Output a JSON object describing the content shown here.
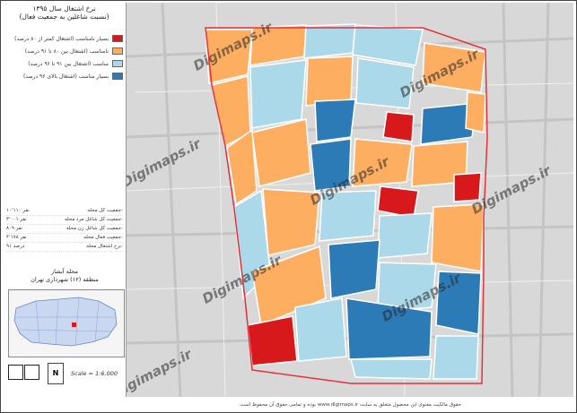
{
  "title_line1": "نرخ اشتغال سال ۱۳۹۵",
  "title_line2": "(نسبت شاغلین به جمعیت فعال)",
  "legend": [
    {
      "label": "بسیار نامناسب (اشتغال کمتر از ۸۰ درصد)",
      "color": "#d7191c"
    },
    {
      "label": "نامناسب (اشتغال بین ۸۰ تا ۹۱ درصد)",
      "color": "#fdae61"
    },
    {
      "label": "مناسب (اشتغال بین ۹۱ تا ۹۶ درصد)",
      "color": "#abd9e9"
    },
    {
      "label": "بسیار مناسب (اشتغال بالای ۹۶ درصد)",
      "color": "#2c7bb6"
    }
  ],
  "stats": [
    {
      "label": "جمعیت کل محله:",
      "value": "۱۰٬۱۱۰ نفر"
    },
    {
      "label": "جمعیت کل شاغل مرد محله:",
      "value": "۳٬۰۰۱ نفر"
    },
    {
      "label": "جمعیت کل شاغل زن محله:",
      "value": "۸۰۹ نفر"
    },
    {
      "label": "جمعیت فعال محله:",
      "value": "۴٬۱۷۸ نفر"
    },
    {
      "label": "نرخ اشتغال محله:",
      "value": "۹۱ درصد"
    }
  ],
  "region_line1": "محله آبشار",
  "region_line2": "منطقه (۱۲) شهرداری تهران",
  "scale_label": "Scale = 1:6,000",
  "north_label": "N",
  "watermark": "Digimaps.ir",
  "footer": "حقوق مالکیت معنوی این محصول متعلق به سایت www.digimaps.ir بوده و تمامی حقوق آن محفوظ است.",
  "colors": {
    "red": "#d7191c",
    "orange": "#fdae61",
    "light_blue": "#abd9e9",
    "dark_blue": "#2c7bb6",
    "boundary": "#e8303a",
    "base": "#d8d8d8"
  }
}
